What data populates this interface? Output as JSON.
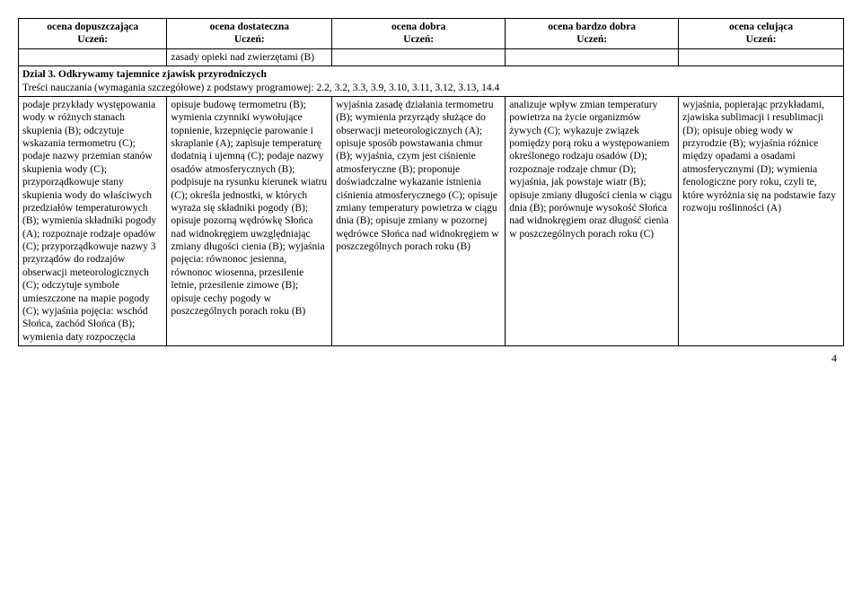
{
  "headers": {
    "c1_l1": "ocena dopuszczająca",
    "c1_l2": "Uczeń:",
    "c2_l1": "ocena dostateczna",
    "c2_l2": "Uczeń:",
    "c3_l1": "ocena dobra",
    "c3_l2": "Uczeń:",
    "c4_l1": "ocena bardzo dobra",
    "c4_l2": "Uczeń:",
    "c5_l1": "ocena celująca",
    "c5_l2": "Uczeń:"
  },
  "row1": {
    "c1": "",
    "c2": "zasady opieki nad zwierzętami (B)",
    "c3": "",
    "c4": "",
    "c5": ""
  },
  "section": {
    "title": "Dział 3. Odkrywamy tajemnice zjawisk przyrodniczych",
    "subtitle": "Treści nauczania (wymagania szczegółowe) z podstawy programowej: 2.2, 3.2, 3.3, 3.9, 3.10, 3.11, 3.12, 3.13, 14.4"
  },
  "row2": {
    "c1": "podaje przykłady występowania wody w różnych stanach skupienia (B); odczytuje wskazania termometru (C); podaje nazwy przemian stanów skupienia wody (C); przyporządkowuje stany skupienia wody do właściwych przedziałów temperaturowych (B); wymienia składniki pogody (A); rozpoznaje rodzaje opadów (C); przyporządkowuje nazwy 3 przyrządów do rodzajów obserwacji meteorologicznych (C); odczytuje symbole umieszczone na mapie pogody (C); wyjaśnia pojęcia: wschód Słońca, zachód Słońca (B); wymienia daty rozpoczęcia",
    "c2": "opisuje budowę termometru (B); wymienia czynniki wywołujące topnienie, krzepnięcie parowanie i skraplanie (A); zapisuje temperaturę dodatnią i ujemną (C); podaje nazwy osadów atmosferycznych (B); podpisuje na rysunku kierunek wiatru (C); określa jednostki, w których wyraża się składniki pogody (B); opisuje pozorną wędrówkę Słońca nad widnokręgiem uwzględniając zmiany długości cienia (B); wyjaśnia pojęcia: równonoc jesienna, równonoc wiosenna, przesilenie letnie, przesilenie zimowe (B); opisuje cechy pogody w poszczególnych porach roku (B)",
    "c3": "wyjaśnia zasadę działania termometru (B); wymienia przyrządy służące do obserwacji meteorologicznych (A); opisuje sposób powstawania chmur (B); wyjaśnia, czym jest ciśnienie atmosferyczne (B); proponuje doświadczalne wykazanie istnienia ciśnienia atmosferycznego (C); opisuje zmiany temperatury powietrza w ciągu dnia (B); opisuje zmiany w pozornej wędrówce Słońca nad widnokręgiem w poszczególnych porach roku (B)",
    "c4": "analizuje wpływ zmian temperatury powietrza na życie organizmów żywych (C); wykazuje związek pomiędzy porą roku a występowaniem określonego rodzaju osadów (D); rozpoznaje rodzaje chmur (D); wyjaśnia, jak powstaje wiatr (B); opisuje zmiany długości cienia w ciągu dnia (B); porównuje wysokość Słońca nad widnokręgiem oraz długość cienia w poszczególnych porach roku (C)",
    "c5": "wyjaśnia, popierając przykładami, zjawiska sublimacji i resublimacji (D); opisuje obieg wody w przyrodzie (B); wyjaśnia różnice między opadami a osadami atmosferycznymi (D); wymienia fenologiczne pory roku, czyli te, które wyróżnia się na podstawie fazy rozwoju roślinności (A)"
  },
  "page_number": "4"
}
